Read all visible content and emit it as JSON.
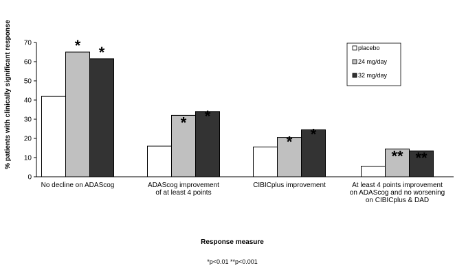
{
  "chart_data": {
    "type": "bar",
    "title": "",
    "xlabel": "Response measure",
    "ylabel": "% patients with clinically significant response",
    "ylim": [
      0,
      70
    ],
    "yticks": [
      "0",
      "10",
      "20",
      "30",
      "40",
      "50",
      "60",
      "70"
    ],
    "grid": false,
    "legend_position": "top-right",
    "categories": [
      [
        "No decline on ADAScog"
      ],
      [
        "ADAScog improvement",
        "of at least 4 points"
      ],
      [
        "CIBICplus improvement"
      ],
      [
        "At least 4 points improvement",
        "on ADAScog and no worsening",
        "on CIBICplus & DAD"
      ]
    ],
    "series": [
      {
        "name": "placebo",
        "color": "#ffffff",
        "values": [
          42,
          16,
          15.5,
          5.5
        ]
      },
      {
        "name": "24 mg/day",
        "color": "#c0c0c0",
        "values": [
          65,
          32,
          20.5,
          14.5
        ]
      },
      {
        "name": "32 mg/day",
        "color": "#333333",
        "values": [
          61.5,
          34,
          24.5,
          13.5
        ]
      }
    ],
    "annotations": [
      {
        "category": 0,
        "series": 1,
        "label": "*",
        "placement": "above"
      },
      {
        "category": 0,
        "series": 2,
        "label": "*",
        "placement": "above"
      },
      {
        "category": 1,
        "series": 1,
        "label": "*",
        "placement": "inside"
      },
      {
        "category": 1,
        "series": 2,
        "label": "*",
        "placement": "top"
      },
      {
        "category": 2,
        "series": 1,
        "label": "*",
        "placement": "top"
      },
      {
        "category": 2,
        "series": 2,
        "label": "*",
        "placement": "top"
      },
      {
        "category": 3,
        "series": 1,
        "label": "**",
        "placement": "inside"
      },
      {
        "category": 3,
        "series": 2,
        "label": "**",
        "placement": "inside"
      }
    ],
    "footnote": "*p<0.01 **p<0.001"
  }
}
